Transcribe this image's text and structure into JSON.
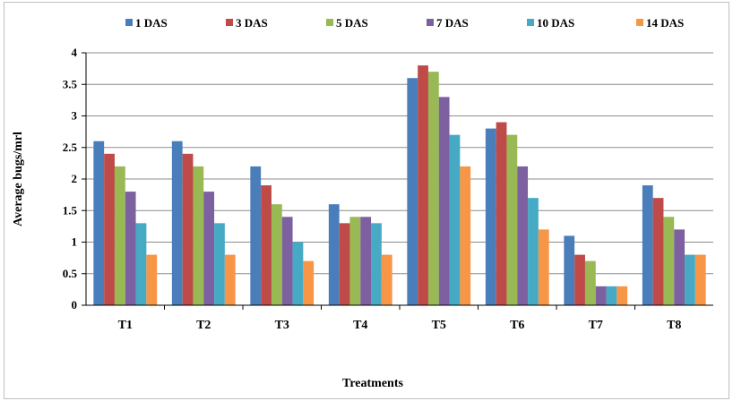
{
  "chart_data": {
    "type": "bar",
    "xlabel": "Treatments",
    "ylabel": "Average bugs/mrl",
    "ylim": [
      0,
      4
    ],
    "yticks": [
      "0",
      "0.5",
      "1",
      "1.5",
      "2",
      "2.5",
      "3",
      "3.5",
      "4"
    ],
    "grid": true,
    "legend_position": "top",
    "categories": [
      "T1",
      "T2",
      "T3",
      "T4",
      "T5",
      "T6",
      "T7",
      "T8"
    ],
    "series": [
      {
        "name": "1 DAS",
        "color": "#4a7ebb",
        "values": [
          2.6,
          2.6,
          2.2,
          1.6,
          3.6,
          2.8,
          1.1,
          1.9
        ]
      },
      {
        "name": "3 DAS",
        "color": "#be4b48",
        "values": [
          2.4,
          2.4,
          1.9,
          1.3,
          3.8,
          2.9,
          0.8,
          1.7
        ]
      },
      {
        "name": "5 DAS",
        "color": "#98b954",
        "values": [
          2.2,
          2.2,
          1.6,
          1.4,
          3.7,
          2.7,
          0.7,
          1.4
        ]
      },
      {
        "name": "7 DAS",
        "color": "#7d60a0",
        "values": [
          1.8,
          1.8,
          1.4,
          1.4,
          3.3,
          2.2,
          0.3,
          1.2
        ]
      },
      {
        "name": "10 DAS",
        "color": "#46aac5",
        "values": [
          1.3,
          1.3,
          1.0,
          1.3,
          2.7,
          1.7,
          0.3,
          0.8
        ]
      },
      {
        "name": "14 DAS",
        "color": "#f79646",
        "values": [
          0.8,
          0.8,
          0.7,
          0.8,
          2.2,
          1.2,
          0.3,
          0.8
        ]
      }
    ]
  }
}
